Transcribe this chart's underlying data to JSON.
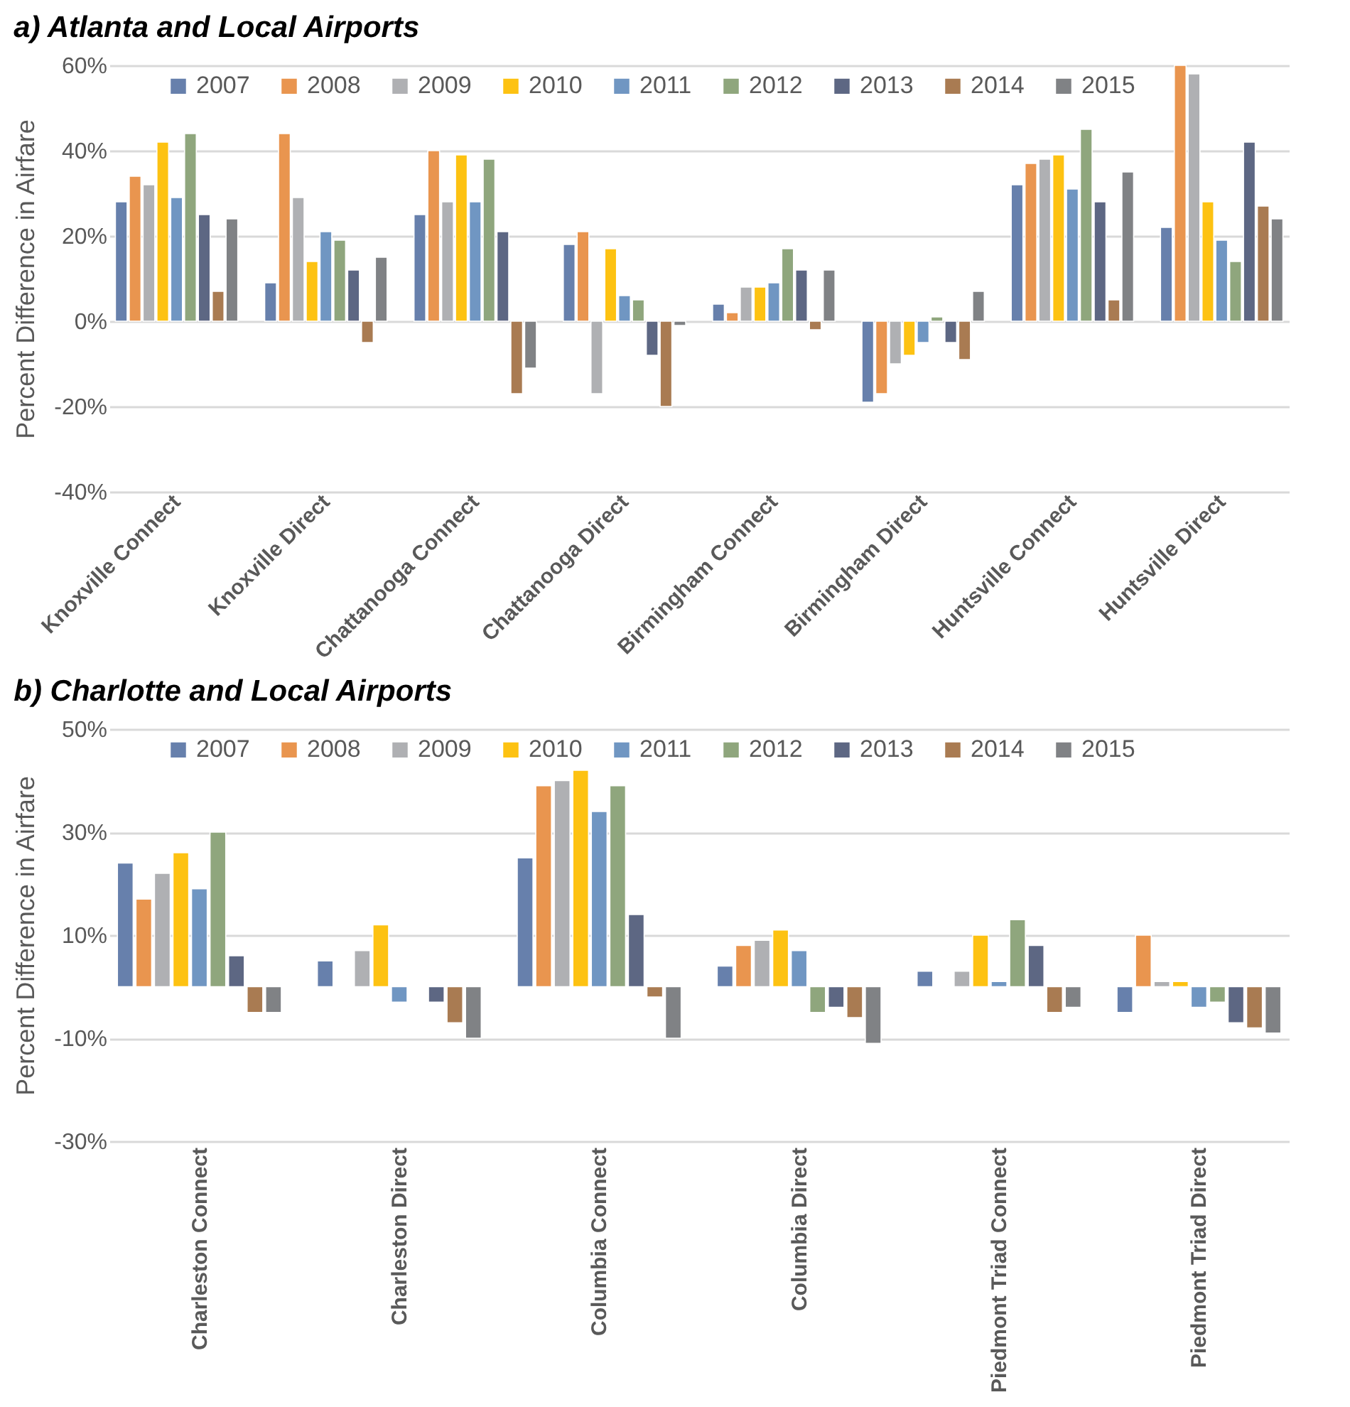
{
  "chart_data": [
    {
      "type": "bar",
      "title": "a) Atlanta and Local Airports",
      "ylabel": "Percent Difference in Airfare",
      "categories": [
        "Knoxville Connect",
        "Knoxville Direct",
        "Chattanooga Connect",
        "Chattanooga Direct",
        "Birmingham Connect",
        "Birmingham Direct",
        "Huntsville Connect",
        "Huntsville Direct"
      ],
      "series": [
        {
          "name": "2007",
          "color": "#6780ac",
          "values": [
            28,
            9,
            25,
            18,
            4,
            -19,
            32,
            22
          ]
        },
        {
          "name": "2008",
          "color": "#e9954f",
          "values": [
            34,
            44,
            40,
            21,
            2,
            -17,
            37,
            60
          ]
        },
        {
          "name": "2009",
          "color": "#afb0b3",
          "values": [
            32,
            29,
            28,
            -17,
            8,
            -10,
            38,
            58
          ]
        },
        {
          "name": "2010",
          "color": "#fdc212",
          "values": [
            42,
            14,
            39,
            17,
            8,
            -8,
            39,
            28
          ]
        },
        {
          "name": "2011",
          "color": "#7096c2",
          "values": [
            29,
            21,
            28,
            6,
            9,
            -5,
            31,
            19
          ]
        },
        {
          "name": "2012",
          "color": "#8fa67d",
          "values": [
            44,
            19,
            38,
            5,
            17,
            1,
            45,
            14
          ]
        },
        {
          "name": "2013",
          "color": "#5d6783",
          "values": [
            25,
            12,
            21,
            -8,
            12,
            -5,
            28,
            42
          ]
        },
        {
          "name": "2014",
          "color": "#a97b52",
          "values": [
            7,
            -5,
            -17,
            -20,
            -2,
            -9,
            5,
            27
          ]
        },
        {
          "name": "2015",
          "color": "#808285",
          "values": [
            24,
            15,
            -11,
            -1,
            12,
            7,
            35,
            24
          ]
        }
      ],
      "ylim": [
        -40,
        60
      ],
      "yticks": [
        {
          "value": -40,
          "label": "-40%"
        },
        {
          "value": -20,
          "label": "-20%"
        },
        {
          "value": 0,
          "label": "0%"
        },
        {
          "value": 20,
          "label": "20%"
        },
        {
          "value": 40,
          "label": "40%"
        },
        {
          "value": 60,
          "label": "60%"
        }
      ],
      "grid": "y",
      "legend": "top"
    },
    {
      "type": "bar",
      "title": "b) Charlotte and Local Airports",
      "ylabel": "Percent Difference in Airfare",
      "categories": [
        "Charleston Connect",
        "Charleston Direct",
        "Columbia Connect",
        "Columbia Direct",
        "Piedmont Triad Connect",
        "Piedmont Triad Direct"
      ],
      "series": [
        {
          "name": "2007",
          "color": "#6780ac",
          "values": [
            24,
            5,
            25,
            4,
            3,
            -5
          ]
        },
        {
          "name": "2008",
          "color": "#e9954f",
          "values": [
            17,
            null,
            39,
            8,
            null,
            10
          ]
        },
        {
          "name": "2009",
          "color": "#afb0b3",
          "values": [
            22,
            7,
            40,
            9,
            3,
            1
          ]
        },
        {
          "name": "2010",
          "color": "#fdc212",
          "values": [
            26,
            12,
            42,
            11,
            10,
            1
          ]
        },
        {
          "name": "2011",
          "color": "#7096c2",
          "values": [
            19,
            -3,
            34,
            7,
            1,
            -4
          ]
        },
        {
          "name": "2012",
          "color": "#8fa67d",
          "values": [
            30,
            null,
            39,
            -5,
            13,
            -3
          ]
        },
        {
          "name": "2013",
          "color": "#5d6783",
          "values": [
            6,
            -3,
            14,
            -4,
            8,
            -7
          ]
        },
        {
          "name": "2014",
          "color": "#a97b52",
          "values": [
            -5,
            -7,
            -2,
            -6,
            -5,
            -8
          ]
        },
        {
          "name": "2015",
          "color": "#808285",
          "values": [
            -5,
            -10,
            -10,
            -11,
            -4,
            -9
          ]
        }
      ],
      "ylim": [
        -30,
        50
      ],
      "yticks": [
        {
          "value": -30,
          "label": "-30%"
        },
        {
          "value": -10,
          "label": "-10%"
        },
        {
          "value": 10,
          "label": "10%"
        },
        {
          "value": 30,
          "label": "30%"
        },
        {
          "value": 50,
          "label": "50%"
        }
      ],
      "grid": "y",
      "legend": "top"
    }
  ]
}
